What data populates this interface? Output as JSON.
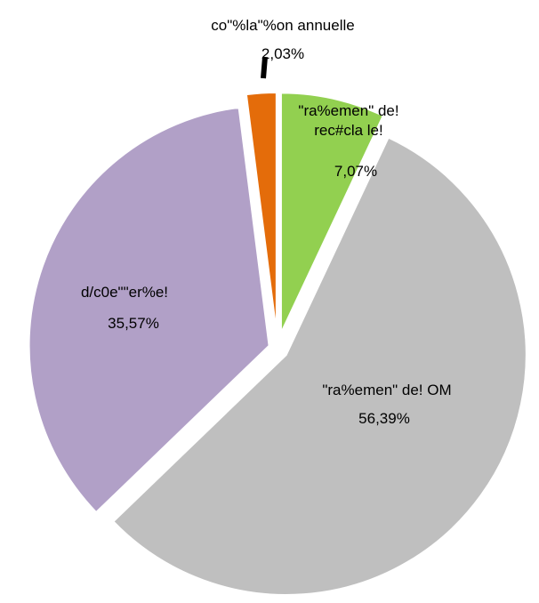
{
  "chart_data": {
    "type": "pie",
    "categories": [
      "\"ra%emen\" de!\nrec#cla le!",
      "\"ra%emen\" de! OM",
      "d/c0e\"\"er%e!",
      "co\"%la\"%on annuelle"
    ],
    "values": [
      7.07,
      56.39,
      35.57,
      2.03
    ],
    "value_labels": [
      "7,07%",
      "56,39%",
      "35,57%",
      "2,03%"
    ],
    "colors": [
      "#92d050",
      "#bfbfbf",
      "#b1a0c7",
      "#e46c0a"
    ]
  }
}
